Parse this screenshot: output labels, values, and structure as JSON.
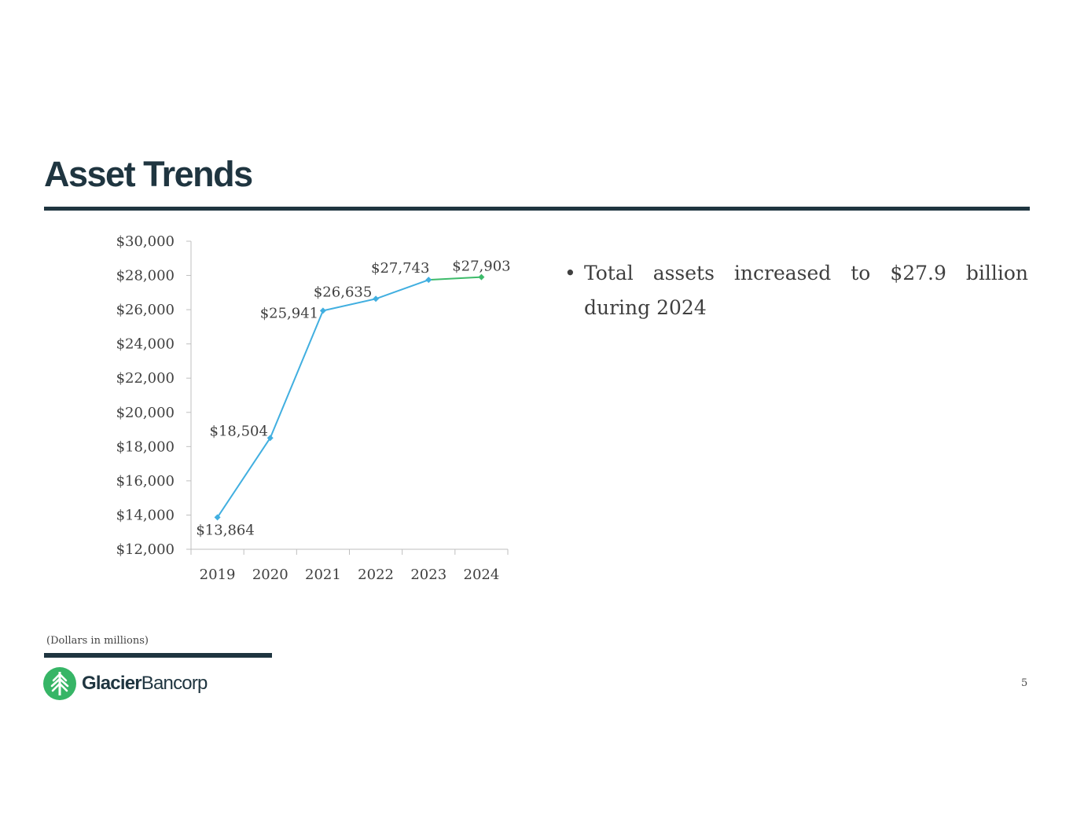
{
  "slide": {
    "title": "Asset Trends",
    "bullet": "Total assets increased to $27.9 billion during 2024",
    "footnote": "(Dollars in millions)",
    "brand_bold": "Glacier",
    "brand_light": "Bancorp",
    "page_number": "5"
  },
  "colors": {
    "navy": "#1f3540",
    "series_blue": "#41afe0",
    "series_green": "#3dbb6a",
    "logo_green": "#36b566"
  },
  "chart_data": {
    "type": "line",
    "x": [
      "2019",
      "2020",
      "2021",
      "2022",
      "2023",
      "2024"
    ],
    "values": [
      13864,
      18504,
      25941,
      26635,
      27743,
      27903
    ],
    "data_labels": [
      "$13,864",
      "$18,504",
      "$25,941",
      "$26,635",
      "$27,743",
      "$27,903"
    ],
    "highlight_last_segment_color": "#3dbb6a",
    "ylim": [
      12000,
      30000
    ],
    "yticks": [
      12000,
      14000,
      16000,
      18000,
      20000,
      22000,
      24000,
      26000,
      28000,
      30000
    ],
    "ytick_labels": [
      "$12,000",
      "$14,000",
      "$16,000",
      "$18,000",
      "$20,000",
      "$22,000",
      "$24,000",
      "$26,000",
      "$28,000",
      "$30,000"
    ],
    "grid": false,
    "legend": "none"
  }
}
